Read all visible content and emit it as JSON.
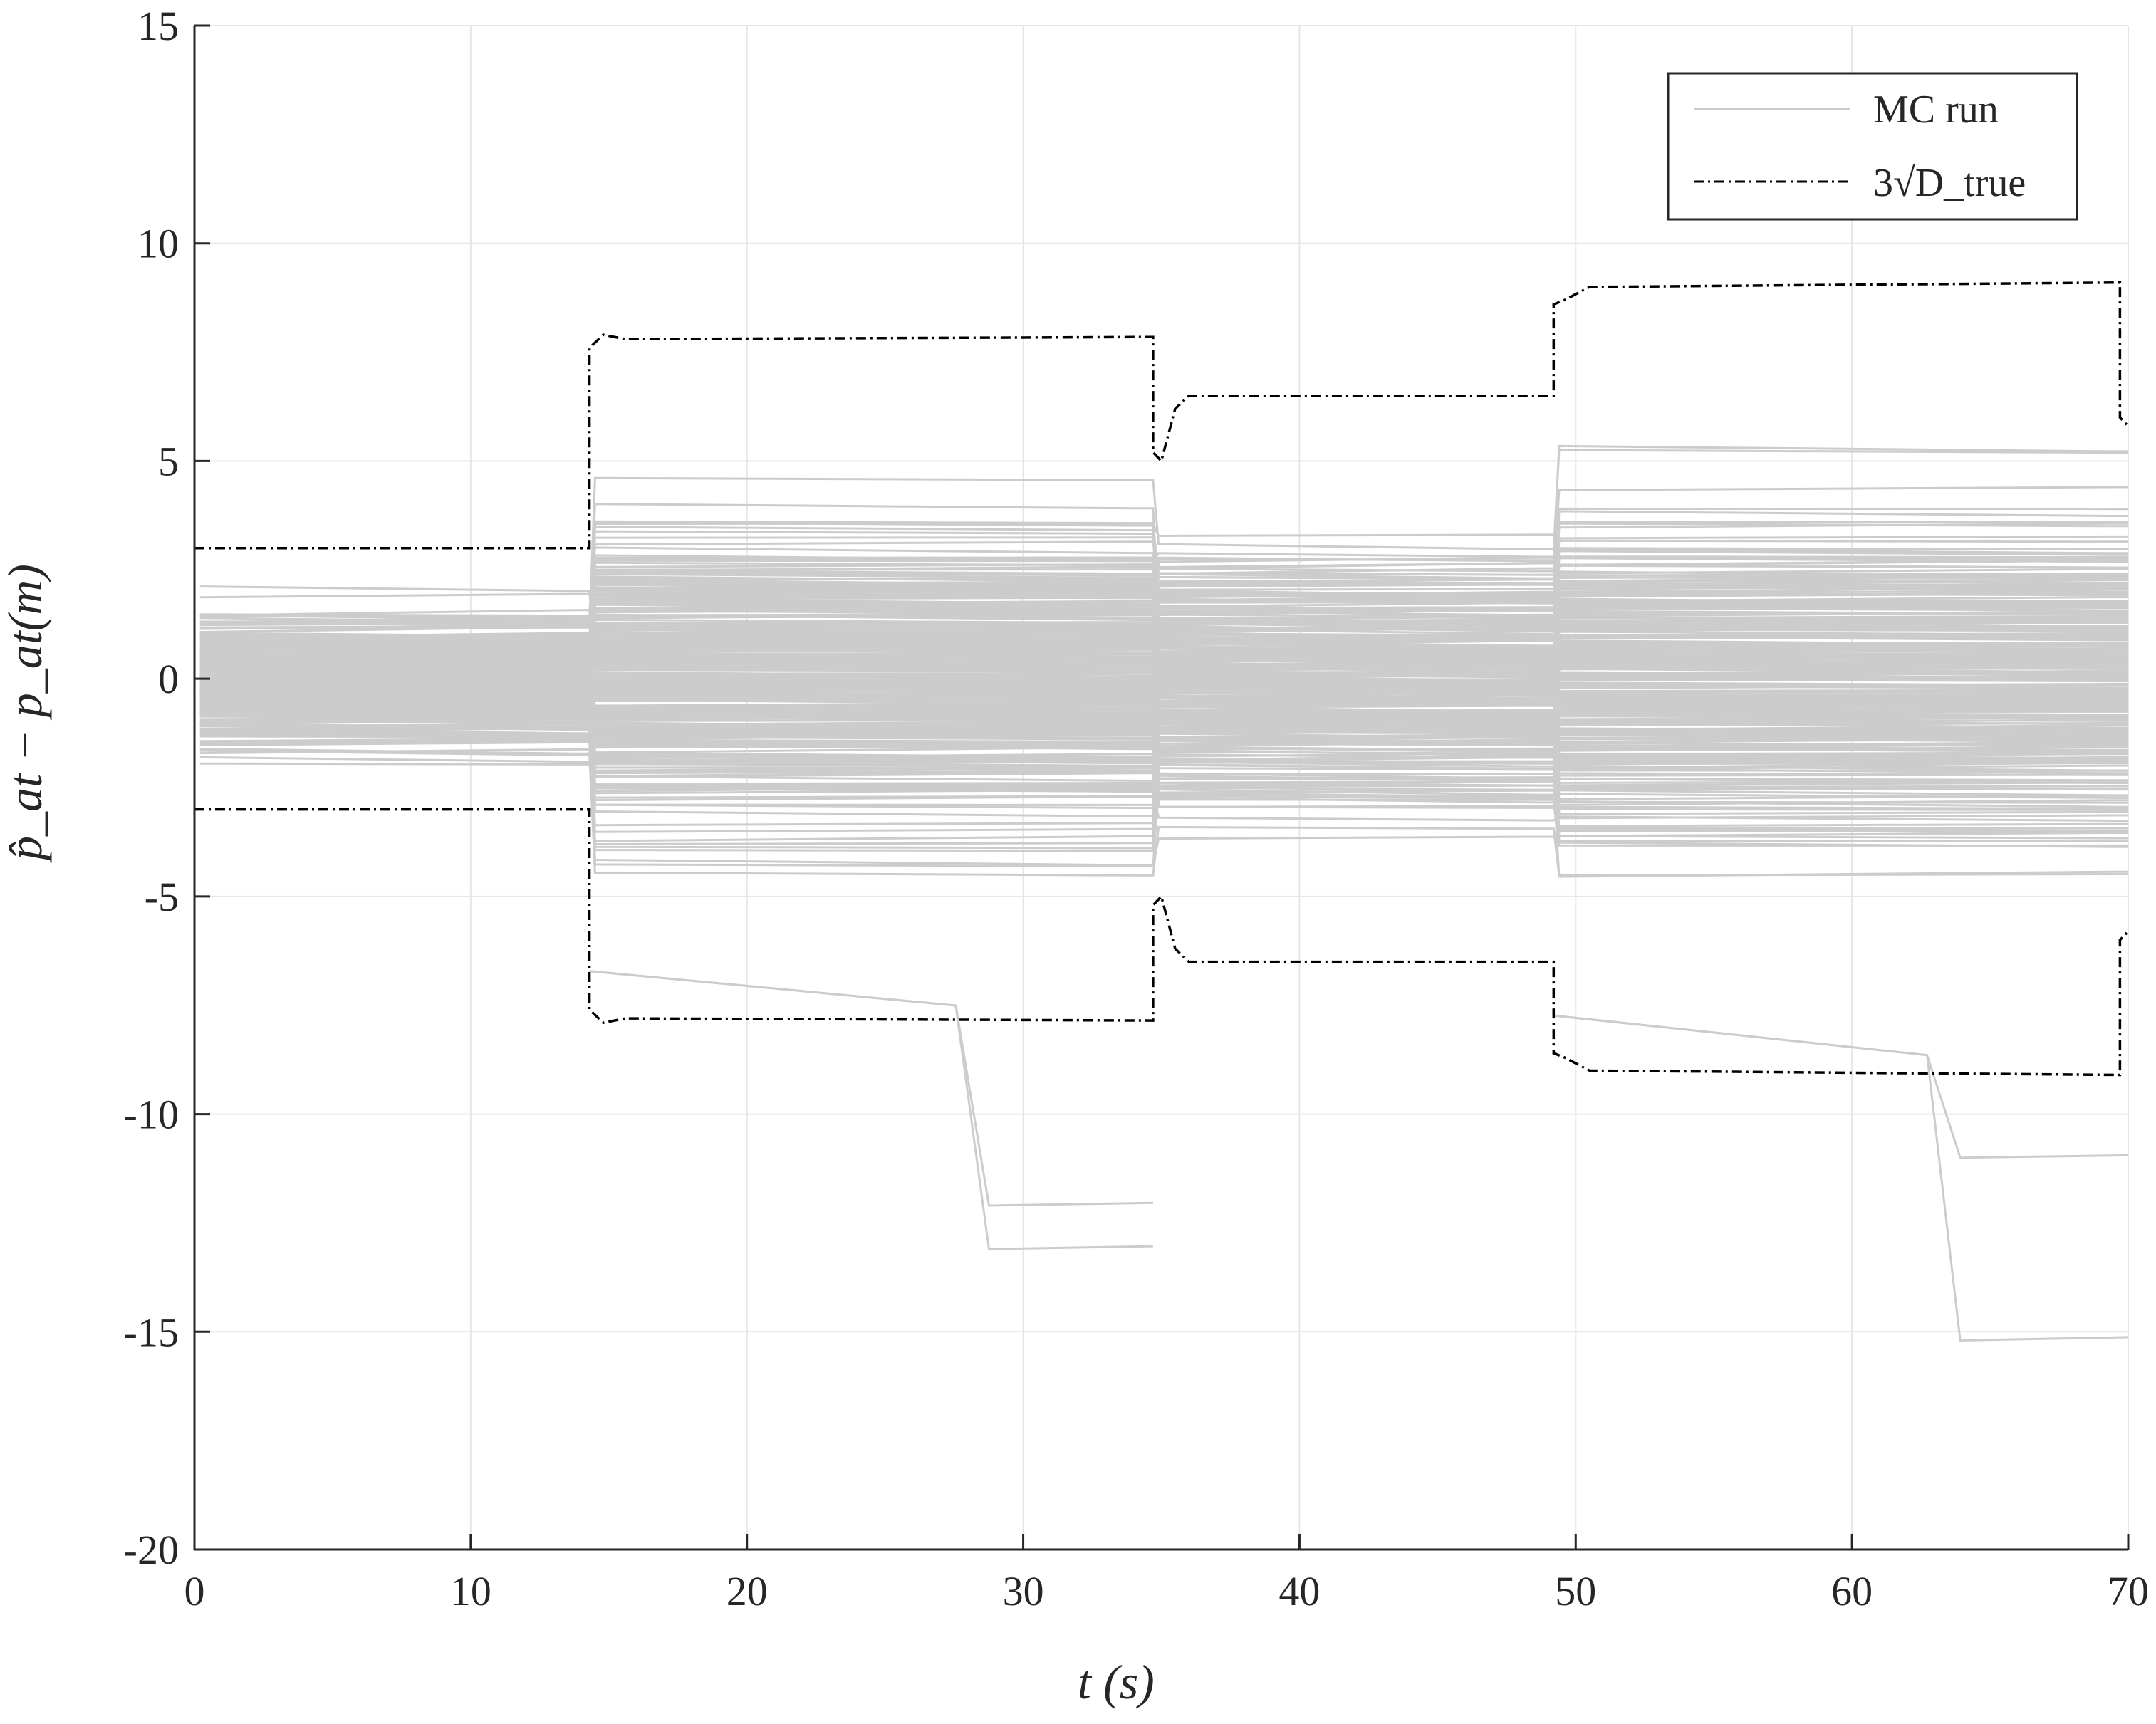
{
  "chart_data": {
    "type": "line",
    "title": "",
    "xlabel": "t (s)",
    "ylabel": "p̂_at − p_at(m)",
    "xlim": [
      0,
      70
    ],
    "ylim": [
      -20,
      15
    ],
    "grid": true,
    "x_ticks": [
      "0",
      "10",
      "20",
      "30",
      "40",
      "50",
      "60",
      "70"
    ],
    "y_ticks": [
      "-20",
      "-15",
      "-10",
      "-5",
      "0",
      "5",
      "10",
      "15"
    ],
    "legend": {
      "placement": "top-right",
      "entries": [
        {
          "label": "MC run",
          "style": "solid",
          "color": "#cccccc"
        },
        {
          "label": "3√D_true",
          "style": "dash-dot",
          "color": "#000000"
        }
      ]
    },
    "mc_runs": {
      "name": "MC run",
      "color": "#cccccc",
      "count": 300,
      "segments": [
        {
          "t_start": 0,
          "t_end": 14.3,
          "bound": 3.0
        },
        {
          "t_start": 14.3,
          "t_end": 34.7,
          "bound": 7.9
        },
        {
          "t_start": 34.7,
          "t_end": 49.2,
          "bound": 6.5
        },
        {
          "t_start": 49.2,
          "t_end": 70,
          "bound": 9.1
        }
      ],
      "extreme_lows": [
        -13.1,
        -15.2,
        -12.1,
        -11.0
      ]
    },
    "bound_series": {
      "name": "3√D_true",
      "color": "#000000",
      "upper": [
        [
          0,
          3.0
        ],
        [
          14.3,
          3.0
        ],
        [
          14.3,
          7.6
        ],
        [
          14.8,
          7.9
        ],
        [
          15.6,
          7.8
        ],
        [
          34.7,
          7.85
        ],
        [
          34.7,
          5.2
        ],
        [
          35.0,
          5.0
        ],
        [
          35.5,
          6.2
        ],
        [
          36.0,
          6.5
        ],
        [
          49.2,
          6.5
        ],
        [
          49.2,
          8.6
        ],
        [
          49.6,
          8.7
        ],
        [
          50.5,
          9.0
        ],
        [
          69.7,
          9.1
        ],
        [
          69.7,
          6.0
        ],
        [
          70,
          5.8
        ]
      ],
      "lower": [
        [
          0,
          -3.0
        ],
        [
          14.3,
          -3.0
        ],
        [
          14.3,
          -7.6
        ],
        [
          14.8,
          -7.9
        ],
        [
          15.6,
          -7.8
        ],
        [
          34.7,
          -7.85
        ],
        [
          34.7,
          -5.2
        ],
        [
          35.0,
          -5.0
        ],
        [
          35.5,
          -6.2
        ],
        [
          36.0,
          -6.5
        ],
        [
          49.2,
          -6.5
        ],
        [
          49.2,
          -8.6
        ],
        [
          49.6,
          -8.7
        ],
        [
          50.5,
          -9.0
        ],
        [
          69.7,
          -9.1
        ],
        [
          69.7,
          -6.0
        ],
        [
          70,
          -5.8
        ]
      ]
    }
  }
}
